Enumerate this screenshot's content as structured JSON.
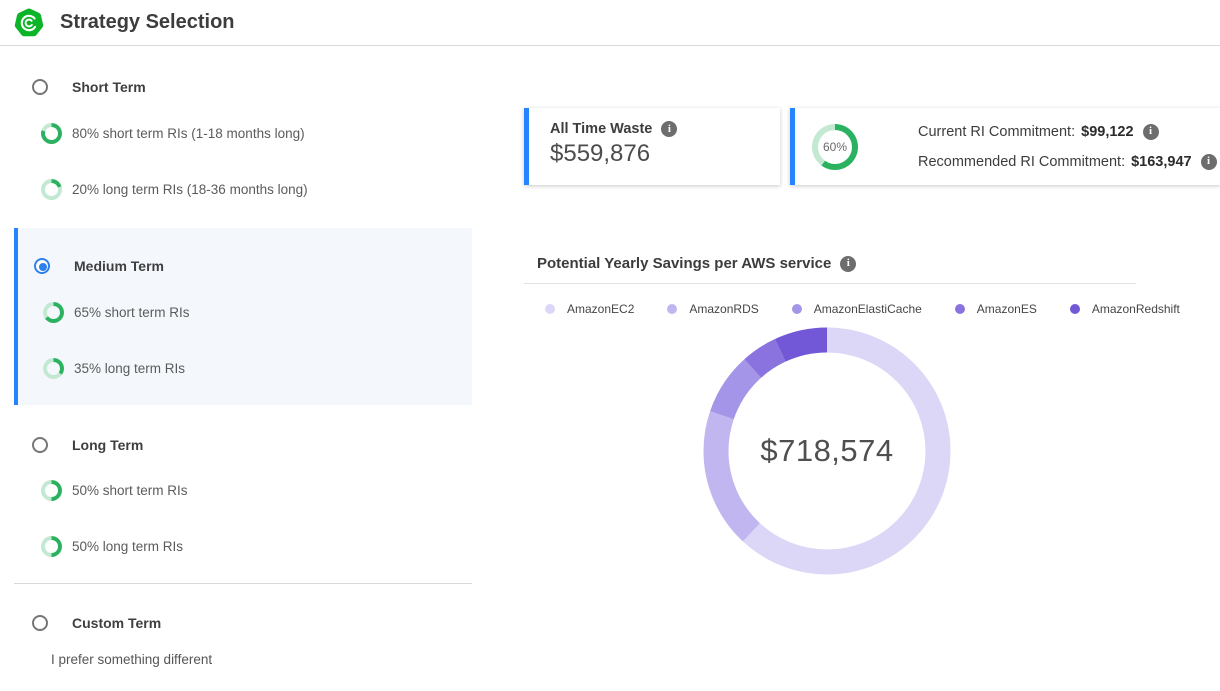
{
  "header": {
    "title": "Strategy Selection"
  },
  "strategies": [
    {
      "label": "Short Term",
      "selected": false,
      "options": [
        {
          "percent": 80,
          "label": "80% short term RIs (1-18 months long)"
        },
        {
          "percent": 20,
          "label": "20% long term RIs (18-36 months long)"
        }
      ]
    },
    {
      "label": "Medium Term",
      "selected": true,
      "options": [
        {
          "percent": 65,
          "label": "65% short term RIs"
        },
        {
          "percent": 35,
          "label": "35% long term RIs"
        }
      ]
    },
    {
      "label": "Long Term",
      "selected": false,
      "options": [
        {
          "percent": 50,
          "label": "50% short term RIs"
        },
        {
          "percent": 50,
          "label": "50% long term RIs"
        }
      ]
    },
    {
      "label": "Custom Term",
      "selected": false,
      "description": "I prefer something different"
    }
  ],
  "cards": {
    "waste": {
      "label": "All Time Waste",
      "value": "$559,876"
    },
    "commitment": {
      "ring_percent": 60,
      "ring_label": "60%",
      "current_label": "Current RI Commitment:",
      "current_value": "$99,122",
      "recommended_label": "Recommended RI Commitment:",
      "recommended_value": "$163,947"
    }
  },
  "chart_data": {
    "type": "pie",
    "donut": true,
    "title": "Potential Yearly Savings per AWS service",
    "center_total": "$718,574",
    "categories": [
      "AmazonEC2",
      "AmazonRDS",
      "AmazonElastiCache",
      "AmazonES",
      "AmazonRedshift"
    ],
    "values": [
      444800,
      131500,
      58200,
      34000,
      50074
    ],
    "colors": [
      "#dcd6f7",
      "#c1b6ef",
      "#a595e8",
      "#8a73de",
      "#7258d6"
    ],
    "legend_position": "top"
  },
  "colors": {
    "accent_blue": "#2684ff",
    "radio_selected": "#2f80ed",
    "ring_green": "#2bb261",
    "ring_green_light": "#c3e9d2",
    "selected_bg": "#f4f8fc",
    "info_gray": "#6d6d6d",
    "logo_green": "#0cb528"
  }
}
